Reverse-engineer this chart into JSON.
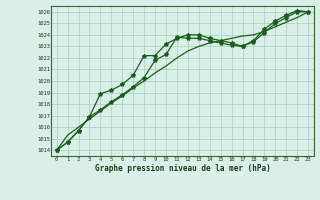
{
  "title": "Graphe pression niveau de la mer (hPa)",
  "bg_color": "#d8f0e8",
  "plot_bg_color": "#d8f0e8",
  "grid_color": "#aaccbb",
  "line_color": "#1a5e1a",
  "x_ticks": [
    0,
    1,
    2,
    3,
    4,
    5,
    6,
    7,
    8,
    9,
    10,
    11,
    12,
    13,
    14,
    15,
    16,
    17,
    18,
    19,
    20,
    21,
    22,
    23
  ],
  "ylim": [
    1013.5,
    1026.5
  ],
  "xlim": [
    -0.5,
    23.5
  ],
  "yticks": [
    1014,
    1015,
    1016,
    1017,
    1018,
    1019,
    1020,
    1021,
    1022,
    1023,
    1024,
    1025,
    1026
  ],
  "series1": [
    1014.0,
    1014.7,
    1015.7,
    1016.9,
    1017.5,
    1018.2,
    1018.8,
    1019.5,
    1020.3,
    1021.8,
    1022.3,
    1023.8,
    1023.7,
    1023.7,
    1023.5,
    1023.3,
    1023.1,
    1023.0,
    1023.4,
    1024.2,
    1025.0,
    1025.5,
    1026.0,
    1026.0
  ],
  "series2": [
    1014.0,
    1014.7,
    1015.7,
    1016.9,
    1018.9,
    1019.2,
    1019.7,
    1020.5,
    1022.2,
    1022.2,
    1023.2,
    1023.7,
    1024.0,
    1024.0,
    1023.7,
    1023.5,
    1023.3,
    1023.0,
    1023.5,
    1024.5,
    1025.2,
    1025.7,
    1026.1,
    1026.0
  ],
  "series_smooth": [
    1014.0,
    1015.3,
    1016.0,
    1016.7,
    1017.4,
    1018.1,
    1018.7,
    1019.4,
    1020.0,
    1020.7,
    1021.3,
    1022.0,
    1022.6,
    1023.0,
    1023.3,
    1023.5,
    1023.7,
    1023.9,
    1024.0,
    1024.3,
    1024.7,
    1025.1,
    1025.5,
    1026.0
  ]
}
